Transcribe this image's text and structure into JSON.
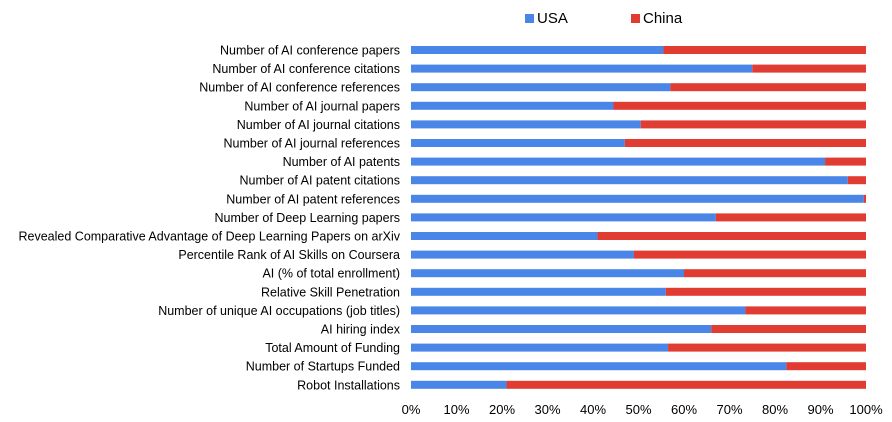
{
  "chart_data": {
    "type": "bar",
    "orientation": "horizontal",
    "stacked": "percent",
    "categories": [
      "Number of AI conference papers",
      "Number of AI conference citations",
      "Number of AI conference references",
      "Number of AI journal papers",
      "Number of AI journal citations",
      "Number of AI journal references",
      "Number of AI patents",
      "Number of AI patent citations",
      "Number of AI patent references",
      "Number of Deep Learning papers",
      "Revealed Comparative Advantage of Deep Learning Papers on arXiv",
      "Percentile Rank of AI Skills on Coursera",
      "AI (% of total enrollment)",
      "Relative Skill Penetration",
      "Number of unique AI occupations (job titles)",
      "AI hiring index",
      "Total Amount of Funding",
      "Number of Startups Funded",
      "Robot Installations"
    ],
    "series": [
      {
        "name": "USA",
        "color": "#4a86e8",
        "values": [
          55.5,
          75,
          57,
          44.5,
          50.5,
          47,
          91,
          96,
          99.5,
          67,
          41,
          49,
          60,
          56,
          73.5,
          66,
          56.5,
          82.5,
          21
        ]
      },
      {
        "name": "China",
        "color": "#e03c31",
        "values": [
          44.5,
          25,
          43,
          55.5,
          49.5,
          53,
          9,
          4,
          0.5,
          33,
          59,
          51,
          40,
          44,
          26.5,
          34,
          43.5,
          17.5,
          79
        ]
      }
    ],
    "xticks": [
      "0%",
      "10%",
      "20%",
      "30%",
      "40%",
      "50%",
      "60%",
      "70%",
      "80%",
      "90%",
      "100%"
    ],
    "xlim": [
      0,
      100
    ],
    "grid": false,
    "legend_position": "top"
  }
}
